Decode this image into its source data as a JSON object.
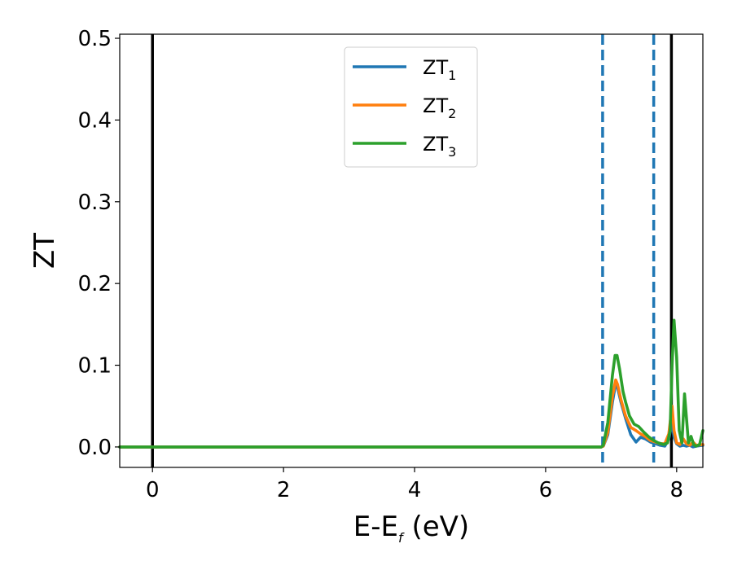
{
  "chart_data": {
    "type": "line",
    "xlabel": {
      "main": "E-E",
      "sub": "f",
      "unit": " (eV)"
    },
    "ylabel": "ZT",
    "xlim": [
      -0.5,
      8.4
    ],
    "ylim": [
      -0.025,
      0.505
    ],
    "xticks": [
      0,
      2,
      4,
      6,
      8
    ],
    "xtick_labels": [
      "0",
      "2",
      "4",
      "6",
      "8"
    ],
    "yticks": [
      0.0,
      0.1,
      0.2,
      0.3,
      0.4,
      0.5
    ],
    "ytick_labels": [
      "0.0",
      "0.1",
      "0.2",
      "0.3",
      "0.4",
      "0.5"
    ],
    "grid": false,
    "legend": {
      "placement": "upper-center",
      "entries": [
        {
          "main": "ZT",
          "sub": "1"
        },
        {
          "main": "ZT",
          "sub": "2"
        },
        {
          "main": "ZT",
          "sub": "3"
        }
      ]
    },
    "reference_lines": [
      {
        "x": 0.0,
        "style": "solid",
        "color": "#000000"
      },
      {
        "x": 6.87,
        "style": "dashed",
        "color": "#1f77b4"
      },
      {
        "x": 7.65,
        "style": "dashed",
        "color": "#1f77b4"
      },
      {
        "x": 7.92,
        "style": "solid",
        "color": "#000000"
      }
    ],
    "series": [
      {
        "color": "#1f77b4",
        "x": [
          -0.5,
          6.85,
          6.88,
          6.95,
          7.02,
          7.07,
          7.1,
          7.15,
          7.22,
          7.3,
          7.38,
          7.45,
          7.52,
          7.6,
          7.68,
          7.75,
          7.82,
          7.88,
          7.93,
          7.96,
          8.0,
          8.05,
          8.1,
          8.15,
          8.2,
          8.25,
          8.3,
          8.4
        ],
        "y": [
          0.0,
          0.0,
          0.001,
          0.015,
          0.055,
          0.078,
          0.072,
          0.055,
          0.035,
          0.015,
          0.006,
          0.012,
          0.01,
          0.006,
          0.004,
          0.002,
          0.001,
          0.01,
          0.03,
          0.012,
          0.004,
          0.001,
          0.002,
          0.001,
          0.002,
          0.0,
          0.001,
          0.002
        ]
      },
      {
        "color": "#ff7f0e",
        "x": [
          -0.5,
          6.85,
          6.88,
          6.95,
          7.02,
          7.07,
          7.1,
          7.15,
          7.22,
          7.3,
          7.38,
          7.45,
          7.52,
          7.6,
          7.68,
          7.75,
          7.82,
          7.88,
          7.93,
          7.96,
          8.0,
          8.05,
          8.1,
          8.15,
          8.2,
          8.25,
          8.3,
          8.4
        ],
        "y": [
          0.0,
          0.0,
          0.001,
          0.018,
          0.062,
          0.082,
          0.076,
          0.058,
          0.038,
          0.024,
          0.02,
          0.016,
          0.013,
          0.008,
          0.006,
          0.004,
          0.004,
          0.016,
          0.05,
          0.02,
          0.005,
          0.003,
          0.01,
          0.004,
          0.002,
          0.006,
          0.002,
          0.003
        ]
      },
      {
        "color": "#2ca02c",
        "x": [
          -0.5,
          6.85,
          6.88,
          6.95,
          7.02,
          7.06,
          7.09,
          7.13,
          7.18,
          7.22,
          7.28,
          7.35,
          7.42,
          7.5,
          7.58,
          7.65,
          7.72,
          7.8,
          7.86,
          7.9,
          7.93,
          7.96,
          8.0,
          8.04,
          8.08,
          8.12,
          8.15,
          8.18,
          8.22,
          8.26,
          8.3,
          8.35,
          8.4
        ],
        "y": [
          0.0,
          0.0,
          0.002,
          0.03,
          0.088,
          0.112,
          0.112,
          0.095,
          0.068,
          0.055,
          0.038,
          0.028,
          0.025,
          0.018,
          0.012,
          0.008,
          0.005,
          0.003,
          0.005,
          0.02,
          0.1,
          0.155,
          0.11,
          0.02,
          0.005,
          0.065,
          0.035,
          0.005,
          0.013,
          0.003,
          0.001,
          0.003,
          0.02
        ]
      }
    ]
  }
}
